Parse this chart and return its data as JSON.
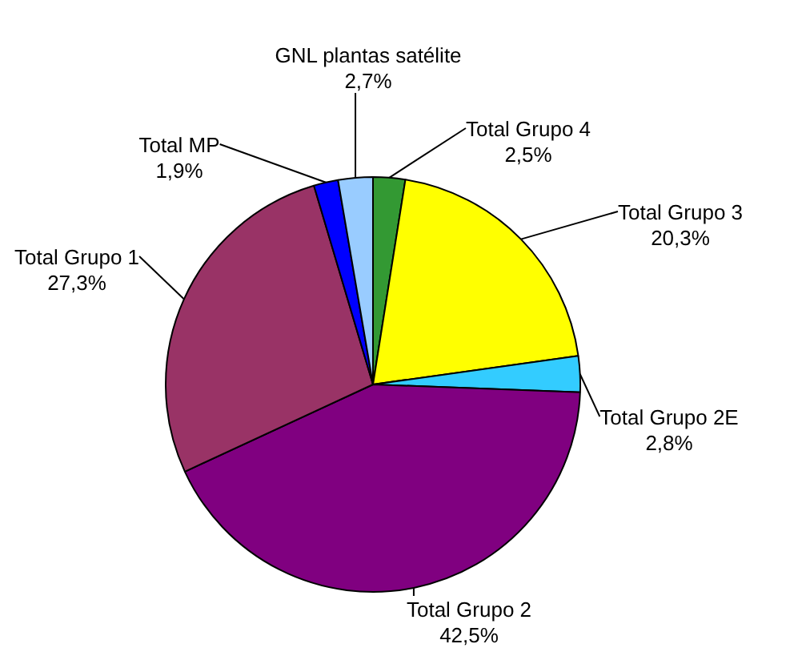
{
  "chart_data": {
    "type": "pie",
    "categories": [
      "Total Grupo 4",
      "Total Grupo 3",
      "Total Grupo 2E",
      "Total Grupo 2",
      "Total Grupo 1",
      "Total MP",
      "GNL plantas satélite"
    ],
    "values": [
      2.5,
      20.3,
      2.8,
      42.5,
      27.3,
      1.9,
      2.7
    ],
    "colors": [
      "#339933",
      "#ffff00",
      "#33ccff",
      "#800080",
      "#993366",
      "#0000ff",
      "#99ccff"
    ],
    "value_labels": [
      "2,5%",
      "20,3%",
      "2,8%",
      "42,5%",
      "27,3%",
      "1,9%",
      "2,7%"
    ],
    "legend": false
  }
}
